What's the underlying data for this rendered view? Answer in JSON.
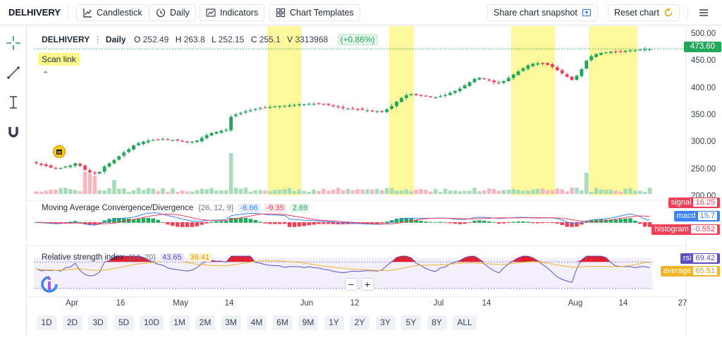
{
  "toolbar": {
    "symbol": "DELHIVERY",
    "candlestick_label": "Candlestick",
    "interval_label": "Daily",
    "indicators_label": "Indicators",
    "templates_label": "Chart Templates",
    "snapshot_label": "Share chart snapshot",
    "reset_label": "Reset chart"
  },
  "legend": {
    "symbol": "DELHIVERY",
    "interval": "Daily",
    "o_label": "O",
    "o": "252.49",
    "h_label": "H",
    "h": "263.8",
    "l_label": "L",
    "l": "252.15",
    "c_label": "C",
    "c": "255.1",
    "v_label": "V",
    "v": "3313968",
    "change": "(+0.86%)",
    "scan_link": "Scan link"
  },
  "price_axis": {
    "ticks": [
      "500.00",
      "450.00",
      "400.00",
      "350.00",
      "300.00",
      "250.00",
      "200.00"
    ],
    "current_price": "473.60"
  },
  "macd": {
    "title": "Moving Average Convergence/Divergence",
    "params": "{26, 12, 9}",
    "v1": "-6.66",
    "v2": "-9.35",
    "v3": "2.69",
    "signal_label": "signal",
    "signal_value": "16.25",
    "macd_label": "macd",
    "macd_value": "15.7",
    "histogram_label": "histogram",
    "histogram_value": "-0.552"
  },
  "rsi": {
    "title": "Relative strength index",
    "params": "{14, 20}",
    "v1": "43.65",
    "v2": "36.41",
    "rsi_label": "rsi",
    "rsi_value": "69.42",
    "average_label": "average",
    "average_value": "65.51"
  },
  "time_axis": {
    "labels": [
      "Apr",
      "16",
      "May",
      "14",
      "Jun",
      "12",
      "Jul",
      "14",
      "Aug",
      "14",
      "27"
    ]
  },
  "zoom": {
    "minus": "−",
    "plus": "+"
  },
  "ranges": [
    "1D",
    "2D",
    "3D",
    "5D",
    "10D",
    "1M",
    "2M",
    "3M",
    "4M",
    "6M",
    "9M",
    "1Y",
    "2Y",
    "3Y",
    "5Y",
    "8Y",
    "ALL"
  ],
  "colors": {
    "up": "#22a65a",
    "down": "#ef4058",
    "highlight": "#fbf78a",
    "macd_line": "#3b82f6",
    "signal_line": "#ef4058",
    "rsi_line": "#5b4fc4",
    "rsi_avg": "#f0b429"
  },
  "chart_data": {
    "type": "candlestick",
    "interval": "Daily",
    "ylim": [
      200,
      500
    ],
    "candles_close": [
      262,
      259,
      257,
      254,
      252,
      253,
      256,
      258,
      262,
      257,
      250,
      245,
      243,
      246,
      256,
      262,
      268,
      275,
      282,
      288,
      295,
      299,
      302,
      304,
      305,
      306,
      307,
      306,
      305,
      304,
      303,
      302,
      302,
      304,
      309,
      314,
      318,
      320,
      322,
      324,
      348,
      352,
      355,
      358,
      360,
      362,
      364,
      365,
      366,
      367,
      368,
      368,
      369,
      370,
      371,
      371,
      372,
      372,
      372,
      371,
      370,
      368,
      366,
      364,
      363,
      363,
      362,
      361,
      360,
      359,
      358,
      358,
      362,
      368,
      376,
      383,
      388,
      390,
      388,
      387,
      386,
      385,
      384,
      386,
      388,
      392,
      396,
      400,
      406,
      412,
      418,
      420,
      418,
      415,
      412,
      410,
      414,
      420,
      426,
      432,
      438,
      443,
      446,
      447,
      446,
      444,
      440,
      434,
      428,
      422,
      416,
      424,
      436,
      452,
      460,
      464,
      466,
      467,
      468,
      468,
      469,
      470,
      471,
      471,
      472,
      473,
      473
    ]
  }
}
